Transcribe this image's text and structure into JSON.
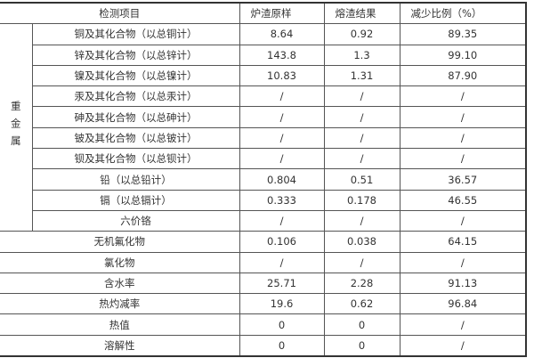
{
  "header": {
    "item": "检测项目",
    "raw": "炉渣原样",
    "melt": "熔渣结果",
    "reduction": "减少比例（%）"
  },
  "group_label": "重金属",
  "group_rows": [
    {
      "item": "铜及其化合物（以总铜计）",
      "raw": "8.64",
      "melt": "0.92",
      "reduction": "89.35"
    },
    {
      "item": "锌及其化合物（以总锌计）",
      "raw": "143.8",
      "melt": "1.3",
      "reduction": "99.10"
    },
    {
      "item": "镍及其化合物（以总镍计）",
      "raw": "10.83",
      "melt": "1.31",
      "reduction": "87.90"
    },
    {
      "item": "汞及其化合物（以总汞计）",
      "raw": "/",
      "melt": "/",
      "reduction": "/"
    },
    {
      "item": "砷及其化合物（以总砷计）",
      "raw": "/",
      "melt": "/",
      "reduction": "/"
    },
    {
      "item": "铍及其化合物（以总铍计）",
      "raw": "/",
      "melt": "/",
      "reduction": "/"
    },
    {
      "item": "钡及其化合物（以总钡计）",
      "raw": "/",
      "melt": "/",
      "reduction": "/"
    },
    {
      "item": "铅（以总铅计）",
      "raw": "0.804",
      "melt": "0.51",
      "reduction": "36.57"
    },
    {
      "item": "镉（以总镉计）",
      "raw": "0.333",
      "melt": "0.178",
      "reduction": "46.55"
    },
    {
      "item": "六价铬",
      "raw": "/",
      "melt": "/",
      "reduction": "/"
    }
  ],
  "other_rows": [
    {
      "item": "无机氟化物",
      "raw": "0.106",
      "melt": "0.038",
      "reduction": "64.15"
    },
    {
      "item": "氯化物",
      "raw": "/",
      "melt": "/",
      "reduction": "/"
    },
    {
      "item": "含水率",
      "raw": "25.71",
      "melt": "2.28",
      "reduction": "91.13"
    },
    {
      "item": "热灼减率",
      "raw": "19.6",
      "melt": "0.62",
      "reduction": "96.84"
    },
    {
      "item": "热值",
      "raw": "0",
      "melt": "0",
      "reduction": "/"
    },
    {
      "item": "溶解性",
      "raw": "0",
      "melt": "0",
      "reduction": "/"
    }
  ]
}
